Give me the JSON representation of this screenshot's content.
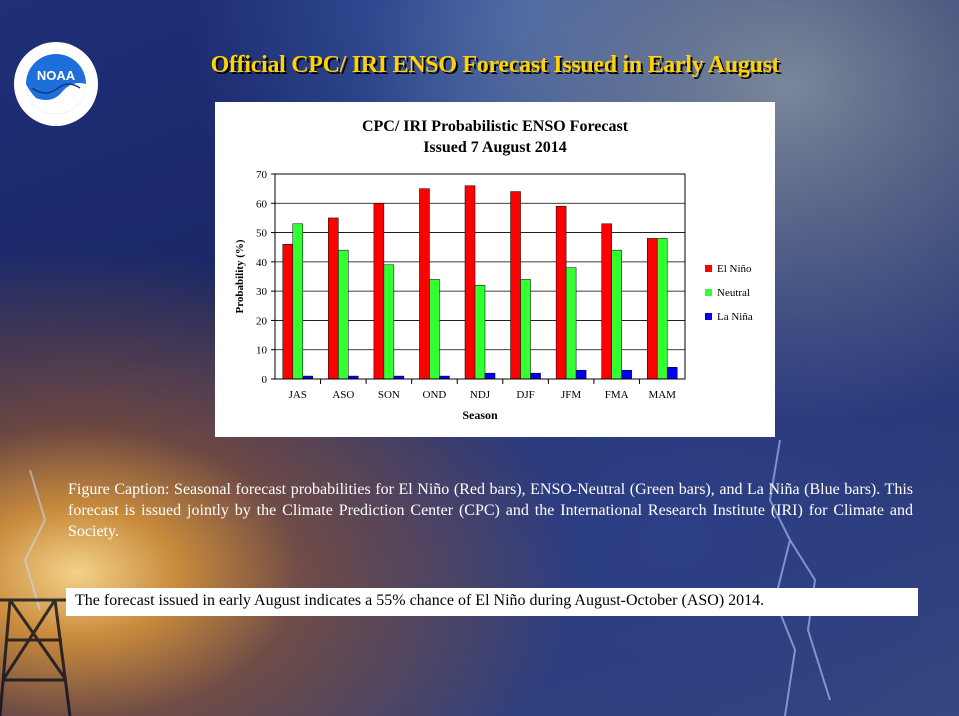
{
  "slide": {
    "title": "Official CPC/ IRI ENSO Forecast Issued in Early August",
    "caption": "Figure Caption: Seasonal forecast probabilities for El Niño (Red bars), ENSO-Neutral (Green  bars), and La Niña (Blue bars). This forecast is issued jointly by the Climate Prediction Center (CPC) and the International Research Institute (IRI) for Climate  and Society.",
    "summary": "The forecast issued in early August indicates a 55% chance of El Niño during August-October (ASO) 2014.",
    "logo_text": "NOAA",
    "logo_icon": "noaa-seal-icon"
  },
  "colors": {
    "title": "#ffd200",
    "el_nino": "#ff0000",
    "neutral": "#33ff33",
    "la_nina": "#0000ee",
    "plot_border": "#000000",
    "grid": "#000000"
  },
  "chart_data": {
    "type": "bar",
    "title": "CPC/ IRI Probabilistic ENSO Forecast",
    "subtitle": "Issued 7 August 2014",
    "xlabel": "Season",
    "ylabel": "Probability  (%)",
    "categories": [
      "JAS",
      "ASO",
      "SON",
      "OND",
      "NDJ",
      "DJF",
      "JFM",
      "FMA",
      "MAM"
    ],
    "series": [
      {
        "name": "El Niño",
        "color": "#ff0000",
        "values": [
          46,
          55,
          60,
          65,
          66,
          64,
          59,
          53,
          48
        ]
      },
      {
        "name": "Neutral",
        "color": "#33ff33",
        "values": [
          53,
          44,
          39,
          34,
          32,
          34,
          38,
          44,
          48
        ]
      },
      {
        "name": "La Niña",
        "color": "#0000ee",
        "values": [
          1,
          1,
          1,
          1,
          2,
          2,
          3,
          3,
          4
        ]
      }
    ],
    "ylim": [
      0,
      70
    ],
    "yticks": [
      0,
      10,
      20,
      30,
      40,
      50,
      60,
      70
    ],
    "grid": true,
    "legend": "right"
  }
}
